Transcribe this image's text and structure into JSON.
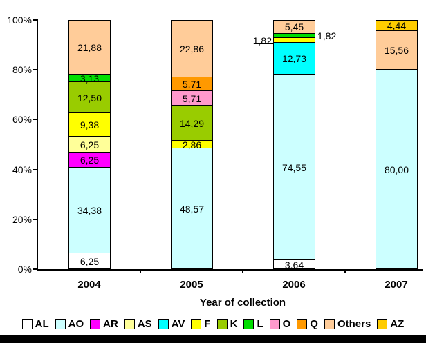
{
  "page": {
    "background_color": "#FFFFFF",
    "bottom_bar_color": "#000000"
  },
  "chart_data": {
    "type": "bar",
    "subtype": "stacked_100_percent",
    "title": "",
    "xlabel": "Year of collection",
    "ylabel": "",
    "grid": false,
    "legend_position": "bottom",
    "categories": [
      "2004",
      "2005",
      "2006",
      "2007"
    ],
    "yaxis": {
      "min": 0,
      "max": 100,
      "ticks": [
        "0%",
        "20%",
        "40%",
        "60%",
        "80%",
        "100%"
      ]
    },
    "legend": [
      {
        "name": "AL",
        "color": "#FFFFFF"
      },
      {
        "name": "AO",
        "color": "#CCFFFF"
      },
      {
        "name": "AR",
        "color": "#FF00FF"
      },
      {
        "name": "AS",
        "color": "#FFFF99"
      },
      {
        "name": "AV",
        "color": "#00FFFF"
      },
      {
        "name": "F",
        "color": "#FFFF00"
      },
      {
        "name": "K",
        "color": "#99CC00"
      },
      {
        "name": "L",
        "color": "#00DD00"
      },
      {
        "name": "O",
        "color": "#FF99CC"
      },
      {
        "name": "Q",
        "color": "#FF9900"
      },
      {
        "name": "Others",
        "color": "#FFCC99"
      },
      {
        "name": "AZ",
        "color": "#FFCC00"
      }
    ],
    "bars": [
      {
        "category": "2004",
        "segments": [
          {
            "series": "AL",
            "value": 6.25,
            "label": "6,25"
          },
          {
            "series": "AO",
            "value": 34.38,
            "label": "34,38"
          },
          {
            "series": "AR",
            "value": 6.25,
            "label": "6,25"
          },
          {
            "series": "AS",
            "value": 6.25,
            "label": "6,25"
          },
          {
            "series": "F",
            "value": 9.38,
            "label": "9,38"
          },
          {
            "series": "K",
            "value": 12.5,
            "label": "12,50"
          },
          {
            "series": "L",
            "value": 3.13,
            "label": "3,13"
          },
          {
            "series": "Others",
            "value": 21.88,
            "label": "21,88"
          }
        ]
      },
      {
        "category": "2005",
        "segments": [
          {
            "series": "AO",
            "value": 48.57,
            "label": "48,57"
          },
          {
            "series": "F",
            "value": 2.86,
            "label": "2,86"
          },
          {
            "series": "K",
            "value": 14.29,
            "label": "14,29"
          },
          {
            "series": "O",
            "value": 5.71,
            "label": "5,71"
          },
          {
            "series": "Q",
            "value": 5.71,
            "label": "5,71"
          },
          {
            "series": "Others",
            "value": 22.86,
            "label": "22,86"
          }
        ]
      },
      {
        "category": "2006",
        "segments": [
          {
            "series": "AL",
            "value": 3.64,
            "label": "3,64"
          },
          {
            "series": "AO",
            "value": 74.55,
            "label": "74,55"
          },
          {
            "series": "AV",
            "value": 12.73,
            "label": "12,73"
          },
          {
            "series": "F",
            "value": 1.82,
            "label": "1,82",
            "label_outside": "left"
          },
          {
            "series": "L",
            "value": 1.82,
            "label": "1,82",
            "label_outside": "right"
          },
          {
            "series": "Others",
            "value": 5.45,
            "label": "5,45"
          }
        ]
      },
      {
        "category": "2007",
        "segments": [
          {
            "series": "AO",
            "value": 80.0,
            "label": "80,00"
          },
          {
            "series": "Others",
            "value": 15.56,
            "label": "15,56"
          },
          {
            "series": "AZ",
            "value": 4.44,
            "label": "4,44"
          }
        ]
      }
    ]
  }
}
